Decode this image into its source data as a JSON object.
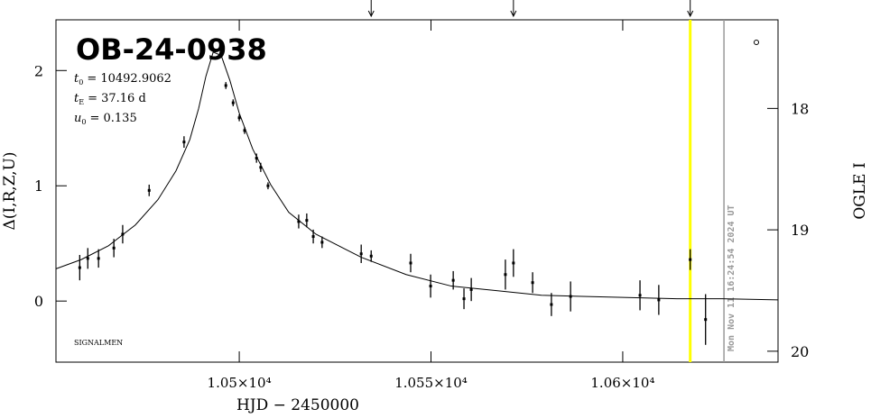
{
  "chart_data": {
    "type": "scatter",
    "title": "OB-24-0938",
    "parameters": [
      {
        "symbol": "t",
        "sub": "0",
        "text": "= 10492.9062"
      },
      {
        "symbol": "t",
        "sub": "E",
        "text": "= 37.16 d"
      },
      {
        "symbol": "u",
        "sub": "0",
        "text": "= 0.135"
      }
    ],
    "note": "SIGNALMEN",
    "timestamp": "Mon Nov 11 16:24:54 2024 UT",
    "x_label": "HJD − 2450000",
    "y_label": "Δ(I,R,Z,U)",
    "y2_label": "OGLE I",
    "x": [
      10458.4,
      10460.5,
      10463.3,
      10467.3,
      10469.6,
      10476.5,
      10485.6,
      10496.5,
      10498.4,
      10500.0,
      10501.4,
      10504.5,
      10505.6,
      10507.5,
      10515.5,
      10517.6,
      10519.3,
      10521.6,
      10531.8,
      10534.4,
      10544.7,
      10549.9,
      10555.8,
      10558.6,
      10560.5,
      10569.4,
      10571.5,
      10576.5,
      10581.4,
      10586.4,
      10604.5,
      10609.4,
      10617.6,
      10621.6
    ],
    "values": [
      0.29,
      0.37,
      0.37,
      0.46,
      0.58,
      0.96,
      1.38,
      1.87,
      1.72,
      1.59,
      1.48,
      1.24,
      1.16,
      1.0,
      0.69,
      0.7,
      0.56,
      0.51,
      0.41,
      0.39,
      0.33,
      0.13,
      0.18,
      0.02,
      0.1,
      0.23,
      0.33,
      0.16,
      -0.03,
      0.04,
      0.05,
      0.01,
      0.36,
      -0.16
    ],
    "errors": [
      0.11,
      0.09,
      0.08,
      0.08,
      0.08,
      0.05,
      0.05,
      0.03,
      0.03,
      0.03,
      0.03,
      0.04,
      0.04,
      0.03,
      0.06,
      0.06,
      0.06,
      0.05,
      0.08,
      0.05,
      0.08,
      0.1,
      0.08,
      0.09,
      0.1,
      0.13,
      0.12,
      0.09,
      0.1,
      0.13,
      0.13,
      0.13,
      0.09,
      0.22
    ],
    "color": "#000000",
    "model": {
      "x": [
        10452.2,
        10458.8,
        10465.9,
        10472.9,
        10478.8,
        10483.5,
        10487.1,
        10489.4,
        10491.3,
        10493.2,
        10495.3,
        10497.6,
        10500.0,
        10503.5,
        10508.2,
        10512.9,
        10520.0,
        10531.8,
        10543.5,
        10555.3,
        10567.1,
        10578.8,
        10590.6,
        10602.4,
        10614.1,
        10625.9,
        10640.5
      ],
      "values": [
        0.28,
        0.36,
        0.48,
        0.66,
        0.88,
        1.13,
        1.4,
        1.67,
        1.95,
        2.16,
        2.13,
        1.91,
        1.63,
        1.32,
        1.01,
        0.77,
        0.58,
        0.38,
        0.23,
        0.13,
        0.09,
        0.05,
        0.04,
        0.03,
        0.02,
        0.02,
        0.01
      ],
      "color": "#000000"
    },
    "arrows": [
      10534.4,
      10571.5,
      10617.6
    ],
    "current_line": {
      "x": 10617.6,
      "color": "#ffff00"
    },
    "date_line": {
      "x": 10626.4,
      "color": "#999999"
    },
    "xlim": [
      10452.2,
      10640.5
    ],
    "xticks": [
      {
        "value": 10500,
        "label": "1.05×10⁴"
      },
      {
        "value": 10550,
        "label": "1.055×10⁴"
      },
      {
        "value": 10600,
        "label": "1.06×10⁴"
      }
    ],
    "ylim": [
      -0.53,
      2.44
    ],
    "yticks": [
      0,
      1,
      2
    ],
    "y2lim": [
      20.09,
      17.27
    ],
    "y2ticks": [
      18,
      19,
      20
    ]
  }
}
